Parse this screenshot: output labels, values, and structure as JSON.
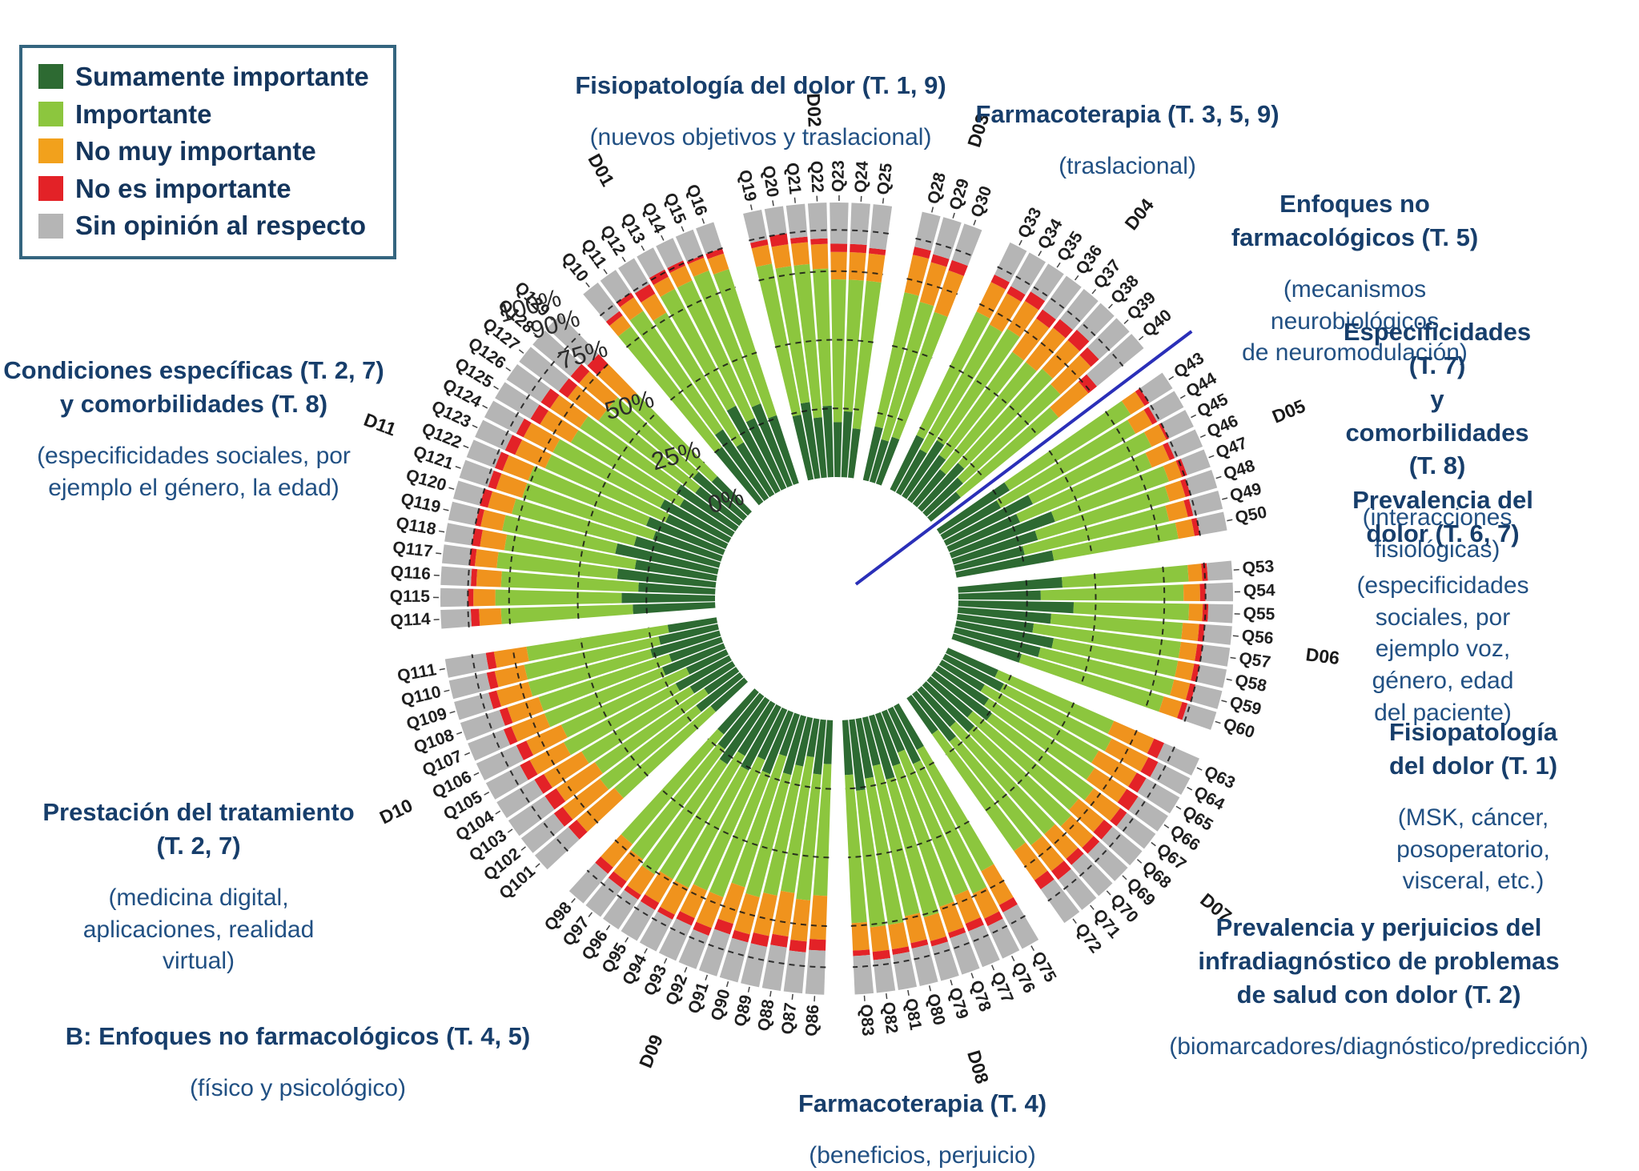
{
  "legend": {
    "items": [
      {
        "label": "Sumamente importante",
        "color": "#2d6a32"
      },
      {
        "label": "Importante",
        "color": "#8cc63e"
      },
      {
        "label": "No muy importante",
        "color": "#f2a11c"
      },
      {
        "label": "No es importante",
        "color": "#e32227"
      },
      {
        "label": "Sin opinión al respecto",
        "color": "#b5b5b5"
      }
    ]
  },
  "annotations": {
    "d01": {
      "title": "Fisiopatología del dolor (T. 1, 9)",
      "subtitle": "(nuevos objetivos y traslacional)"
    },
    "d02": {
      "title": "Farmacoterapia (T. 3, 5, 9)",
      "subtitle": "(traslacional)"
    },
    "d03": {
      "title": "Enfoques no farmacológicos (T. 5)",
      "subtitle": "(mecanismos neurobiológicos\nde neuromodulación)"
    },
    "d04": {
      "title": "Especificidades (T. 7)\ny comorbilidades (T. 8)",
      "subtitle": "(interacciones fisiológicas)"
    },
    "d05": {
      "title": "Prevalencia del dolor (T. 6, 7)",
      "subtitle": "(especificidades sociales, por\nejemplo voz, género, edad\ndel paciente)"
    },
    "d06": {
      "title": "Fisiopatología del dolor (T. 1)",
      "subtitle": "(MSK, cáncer, posoperatorio,\nvisceral, etc.)"
    },
    "d07": {
      "title": "Prevalencia y perjuicios del\ninfradiagnóstico de problemas\nde salud con dolor (T. 2)",
      "subtitle": "(biomarcadores/diagnóstico/predicción)"
    },
    "d08": {
      "title": "Farmacoterapia (T. 4)",
      "subtitle": "(beneficios, perjuicio)"
    },
    "d09": {
      "title": "B: Enfoques no farmacológicos (T. 4, 5)",
      "subtitle": "(físico y psicológico)"
    },
    "d10": {
      "title": "Prestación del tratamiento\n(T. 2, 7)",
      "subtitle": "(medicina digital,\naplicaciones, realidad\nvirtual)"
    },
    "d11": {
      "title": "Condiciones específicas (T. 2, 7)\ny comorbilidades (T. 8)",
      "subtitle": "(especificidades sociales, por\nejemplo el género, la edad)"
    }
  },
  "chart_data": {
    "type": "polar_stacked_bar",
    "title": "",
    "categories": [
      "Sumamente importante",
      "Importante",
      "No muy importante",
      "No es importante",
      "Sin opinión al respecto"
    ],
    "colors": [
      "#2d6a32",
      "#8cc63e",
      "#f0931d",
      "#e32227",
      "#b5b5b5"
    ],
    "radial_ticks": [
      0,
      25,
      50,
      75,
      90,
      100
    ],
    "radial_tick_labels": [
      "0%",
      "25%",
      "50%",
      "75%",
      "90%",
      "100%"
    ],
    "unit": "percent of respondents, stacked to 100%",
    "start_angle_deg": 130,
    "bar_width_deg": 3.16,
    "domain_gap_deg": 4,
    "divider_line": {
      "color": "#2a2fb8",
      "between": [
        "D04",
        "D05"
      ]
    },
    "domains": [
      {
        "id": "D01",
        "questions": [
          "Q10",
          "Q11",
          "Q12",
          "Q13",
          "Q14",
          "Q15",
          "Q16"
        ],
        "values": [
          [
            25,
            55,
            5,
            2,
            13
          ],
          [
            30,
            52,
            6,
            2,
            10
          ],
          [
            22,
            55,
            8,
            4,
            11
          ],
          [
            35,
            48,
            5,
            3,
            9
          ],
          [
            28,
            55,
            6,
            2,
            9
          ],
          [
            32,
            52,
            5,
            1,
            10
          ],
          [
            26,
            56,
            6,
            2,
            10
          ]
        ]
      },
      {
        "id": "D02",
        "questions": [
          "Q19",
          "Q20",
          "Q21",
          "Q22",
          "Q23",
          "Q24",
          "Q25"
        ],
        "values": [
          [
            24,
            56,
            7,
            2,
            11
          ],
          [
            28,
            50,
            8,
            4,
            10
          ],
          [
            22,
            56,
            8,
            2,
            12
          ],
          [
            26,
            50,
            9,
            2,
            13
          ],
          [
            20,
            52,
            10,
            3,
            15
          ],
          [
            24,
            48,
            10,
            3,
            15
          ],
          [
            18,
            54,
            10,
            2,
            16
          ]
        ]
      },
      {
        "id": "D03",
        "questions": [
          "Q28",
          "Q29",
          "Q30"
        ],
        "values": [
          [
            20,
            50,
            14,
            3,
            13
          ],
          [
            16,
            52,
            15,
            3,
            14
          ],
          [
            18,
            48,
            16,
            4,
            14
          ]
        ]
      },
      {
        "id": "D04",
        "questions": [
          "Q33",
          "Q34",
          "Q35",
          "Q36",
          "Q37",
          "Q38",
          "Q39",
          "Q40"
        ],
        "values": [
          [
            22,
            50,
            12,
            3,
            13
          ],
          [
            18,
            52,
            13,
            3,
            14
          ],
          [
            24,
            48,
            12,
            4,
            12
          ],
          [
            20,
            46,
            15,
            4,
            15
          ],
          [
            16,
            50,
            16,
            4,
            14
          ],
          [
            22,
            46,
            14,
            5,
            13
          ],
          [
            18,
            48,
            15,
            4,
            15
          ],
          [
            14,
            46,
            14,
            4,
            22
          ]
        ]
      },
      {
        "id": "D05",
        "questions": [
          "Q43",
          "Q44",
          "Q45",
          "Q46",
          "Q47",
          "Q48",
          "Q49",
          "Q50"
        ],
        "values": [
          [
            30,
            52,
            6,
            2,
            10
          ],
          [
            24,
            56,
            7,
            2,
            11
          ],
          [
            35,
            48,
            6,
            1,
            10
          ],
          [
            28,
            52,
            7,
            2,
            11
          ],
          [
            40,
            44,
            5,
            2,
            9
          ],
          [
            32,
            50,
            6,
            2,
            10
          ],
          [
            26,
            54,
            7,
            2,
            11
          ],
          [
            36,
            46,
            6,
            2,
            10
          ]
        ]
      },
      {
        "id": "D06",
        "questions": [
          "Q53",
          "Q54",
          "Q55",
          "Q56",
          "Q57",
          "Q58",
          "Q59",
          "Q60"
        ],
        "values": [
          [
            38,
            46,
            5,
            2,
            9
          ],
          [
            30,
            52,
            6,
            2,
            10
          ],
          [
            42,
            42,
            5,
            2,
            9
          ],
          [
            34,
            48,
            6,
            2,
            10
          ],
          [
            28,
            54,
            6,
            2,
            10
          ],
          [
            36,
            46,
            6,
            2,
            10
          ],
          [
            32,
            50,
            6,
            2,
            10
          ],
          [
            26,
            54,
            7,
            2,
            11
          ]
        ]
      },
      {
        "id": "D07",
        "questions": [
          "Q63",
          "Q64",
          "Q65",
          "Q66",
          "Q67",
          "Q68",
          "Q69",
          "Q70",
          "Q71",
          "Q72"
        ],
        "values": [
          [
            20,
            46,
            16,
            4,
            14
          ],
          [
            24,
            44,
            15,
            4,
            13
          ],
          [
            18,
            48,
            16,
            4,
            14
          ],
          [
            22,
            46,
            14,
            5,
            13
          ],
          [
            26,
            46,
            12,
            3,
            13
          ],
          [
            20,
            50,
            12,
            4,
            14
          ],
          [
            24,
            48,
            11,
            3,
            14
          ],
          [
            18,
            52,
            12,
            3,
            15
          ],
          [
            22,
            48,
            12,
            4,
            14
          ],
          [
            16,
            52,
            13,
            4,
            15
          ]
        ]
      },
      {
        "id": "D08",
        "questions": [
          "Q75",
          "Q76",
          "Q77",
          "Q78",
          "Q79",
          "Q80",
          "Q81",
          "Q82",
          "Q83"
        ],
        "values": [
          [
            18,
            50,
            14,
            3,
            15
          ],
          [
            22,
            52,
            10,
            3,
            13
          ],
          [
            16,
            56,
            11,
            3,
            14
          ],
          [
            20,
            54,
            10,
            2,
            14
          ],
          [
            24,
            52,
            9,
            2,
            13
          ],
          [
            18,
            56,
            10,
            2,
            14
          ],
          [
            22,
            54,
            9,
            2,
            13
          ],
          [
            26,
            50,
            9,
            3,
            12
          ],
          [
            20,
            54,
            10,
            2,
            14
          ]
        ]
      },
      {
        "id": "D09",
        "questions": [
          "Q86",
          "Q87",
          "Q88",
          "Q89",
          "Q90",
          "Q91",
          "Q92",
          "Q93",
          "Q94",
          "Q95",
          "Q96",
          "Q97",
          "Q98"
        ],
        "values": [
          [
            16,
            48,
            16,
            4,
            16
          ],
          [
            20,
            46,
            15,
            4,
            15
          ],
          [
            14,
            50,
            16,
            4,
            16
          ],
          [
            18,
            48,
            15,
            4,
            15
          ],
          [
            22,
            46,
            14,
            3,
            15
          ],
          [
            16,
            50,
            14,
            4,
            16
          ],
          [
            24,
            48,
            12,
            3,
            13
          ],
          [
            20,
            52,
            11,
            3,
            14
          ],
          [
            26,
            48,
            11,
            2,
            13
          ],
          [
            22,
            52,
            10,
            3,
            13
          ],
          [
            28,
            48,
            9,
            2,
            13
          ],
          [
            24,
            50,
            10,
            3,
            13
          ],
          [
            20,
            52,
            11,
            3,
            14
          ]
        ]
      },
      {
        "id": "D10",
        "questions": [
          "Q101",
          "Q102",
          "Q103",
          "Q104",
          "Q105",
          "Q106",
          "Q107",
          "Q108",
          "Q109",
          "Q110",
          "Q111"
        ],
        "values": [
          [
            16,
            46,
            18,
            4,
            16
          ],
          [
            20,
            44,
            17,
            4,
            15
          ],
          [
            14,
            48,
            17,
            5,
            16
          ],
          [
            18,
            46,
            16,
            4,
            16
          ],
          [
            22,
            46,
            14,
            4,
            14
          ],
          [
            16,
            50,
            14,
            4,
            16
          ],
          [
            24,
            46,
            13,
            3,
            14
          ],
          [
            20,
            50,
            12,
            3,
            15
          ],
          [
            26,
            46,
            12,
            3,
            13
          ],
          [
            22,
            50,
            11,
            3,
            14
          ],
          [
            18,
            52,
            12,
            3,
            15
          ]
        ]
      },
      {
        "id": "D11",
        "questions": [
          "Q114",
          "Q115",
          "Q116",
          "Q117",
          "Q118",
          "Q119",
          "Q120",
          "Q121",
          "Q122",
          "Q123",
          "Q124",
          "Q125",
          "Q126",
          "Q127",
          "Q128",
          "Q129"
        ],
        "values": [
          [
            30,
            48,
            8,
            3,
            11
          ],
          [
            34,
            46,
            8,
            2,
            10
          ],
          [
            28,
            50,
            9,
            2,
            11
          ],
          [
            36,
            44,
            8,
            2,
            10
          ],
          [
            30,
            48,
            9,
            3,
            10
          ],
          [
            38,
            42,
            8,
            2,
            10
          ],
          [
            32,
            46,
            9,
            3,
            10
          ],
          [
            26,
            50,
            10,
            3,
            11
          ],
          [
            30,
            46,
            10,
            3,
            11
          ],
          [
            24,
            48,
            12,
            4,
            12
          ],
          [
            28,
            44,
            12,
            3,
            13
          ],
          [
            22,
            46,
            13,
            4,
            15
          ],
          [
            26,
            42,
            13,
            4,
            15
          ],
          [
            20,
            44,
            14,
            4,
            18
          ],
          [
            24,
            40,
            14,
            4,
            18
          ],
          [
            18,
            42,
            15,
            5,
            20
          ]
        ]
      }
    ]
  }
}
